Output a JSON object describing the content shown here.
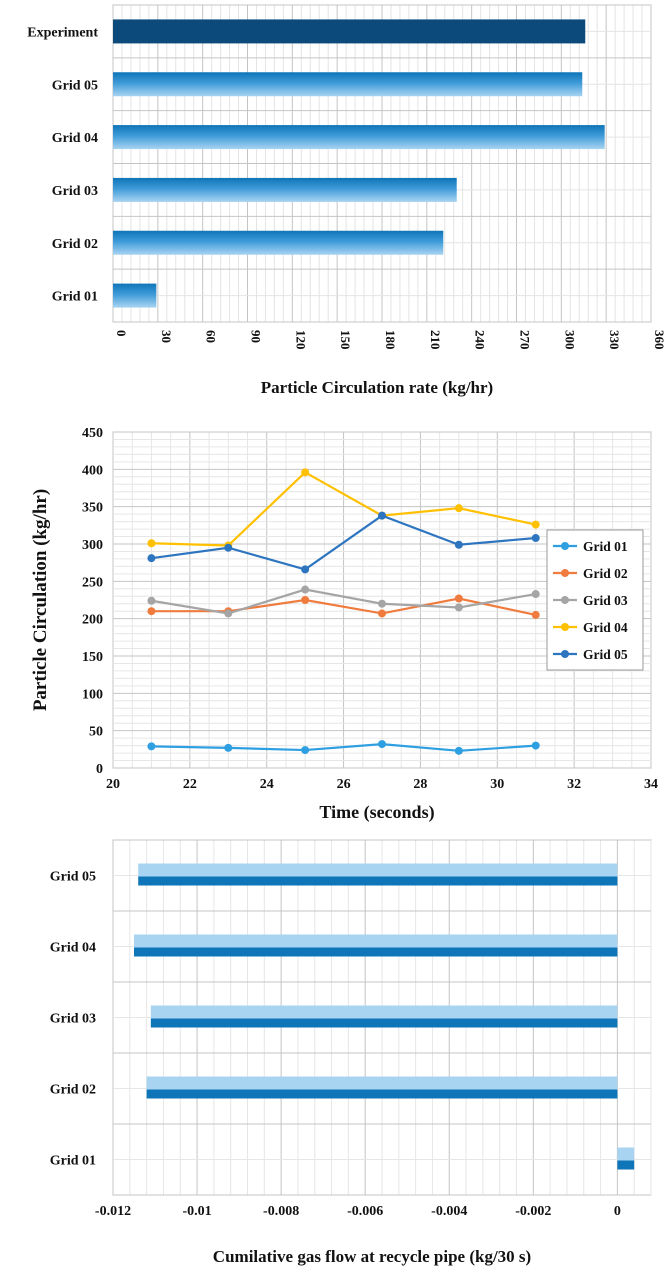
{
  "chart_data": [
    {
      "type": "bar",
      "orientation": "horizontal",
      "categories": [
        "Experiment",
        "Grid 05",
        "Grid 04",
        "Grid 03",
        "Grid 02",
        "Grid 01"
      ],
      "values": [
        316,
        314,
        329,
        230,
        221,
        29
      ],
      "xlabel": "Particle Circulation rate (kg/hr)",
      "xlim": [
        0,
        360
      ],
      "xticks": [
        "0",
        "30",
        "60",
        "90",
        "120",
        "150",
        "180",
        "210",
        "240",
        "270",
        "300",
        "330",
        "360"
      ],
      "grid": true,
      "colors": {
        "highlight": "#0b4a7a",
        "bar_dark": "#0e75b8",
        "bar_light": "#a8d4f2"
      }
    },
    {
      "type": "line",
      "x": [
        21,
        23,
        25,
        27,
        29,
        31
      ],
      "series": [
        {
          "name": "Grid 01",
          "values": [
            29,
            27,
            24,
            32,
            23,
            30
          ],
          "color": "#2e9fe0"
        },
        {
          "name": "Grid 02",
          "values": [
            210,
            210,
            225,
            207,
            227,
            205
          ],
          "color": "#f07b3f"
        },
        {
          "name": "Grid 03",
          "values": [
            224,
            207,
            239,
            220,
            215,
            233
          ],
          "color": "#a5a5a5"
        },
        {
          "name": "Grid 04",
          "values": [
            301,
            298,
            396,
            338,
            348,
            326
          ],
          "color": "#ffc000"
        },
        {
          "name": "Grid 05",
          "values": [
            281,
            295,
            266,
            338,
            299,
            308
          ],
          "color": "#2e75c0"
        }
      ],
      "xlabel": "Time (seconds)",
      "ylabel": "Particle Circulation (kg/hr)",
      "xlim": [
        20,
        34
      ],
      "ylim": [
        0,
        450
      ],
      "xticks": [
        "20",
        "22",
        "24",
        "26",
        "28",
        "30",
        "32",
        "34"
      ],
      "yticks": [
        "0",
        "50",
        "100",
        "150",
        "200",
        "250",
        "300",
        "350",
        "400",
        "450"
      ],
      "legend": "right",
      "grid": true
    },
    {
      "type": "bar",
      "orientation": "horizontal",
      "categories": [
        "Grid 05",
        "Grid 04",
        "Grid 03",
        "Grid 02",
        "Grid 01"
      ],
      "values": [
        -0.0114,
        -0.0115,
        -0.0111,
        -0.0112,
        0.0004
      ],
      "xlabel": "Cumilative gas flow at recycle pipe (kg/30 s)",
      "xlim": [
        -0.012,
        0.0008
      ],
      "xticks": [
        "-0.012",
        "-0.01",
        "-0.008",
        "-0.006",
        "-0.004",
        "-0.002",
        "0"
      ],
      "grid": true,
      "colors": {
        "bar_dark": "#0e75b8",
        "bar_light": "#a8d4f2"
      }
    }
  ]
}
